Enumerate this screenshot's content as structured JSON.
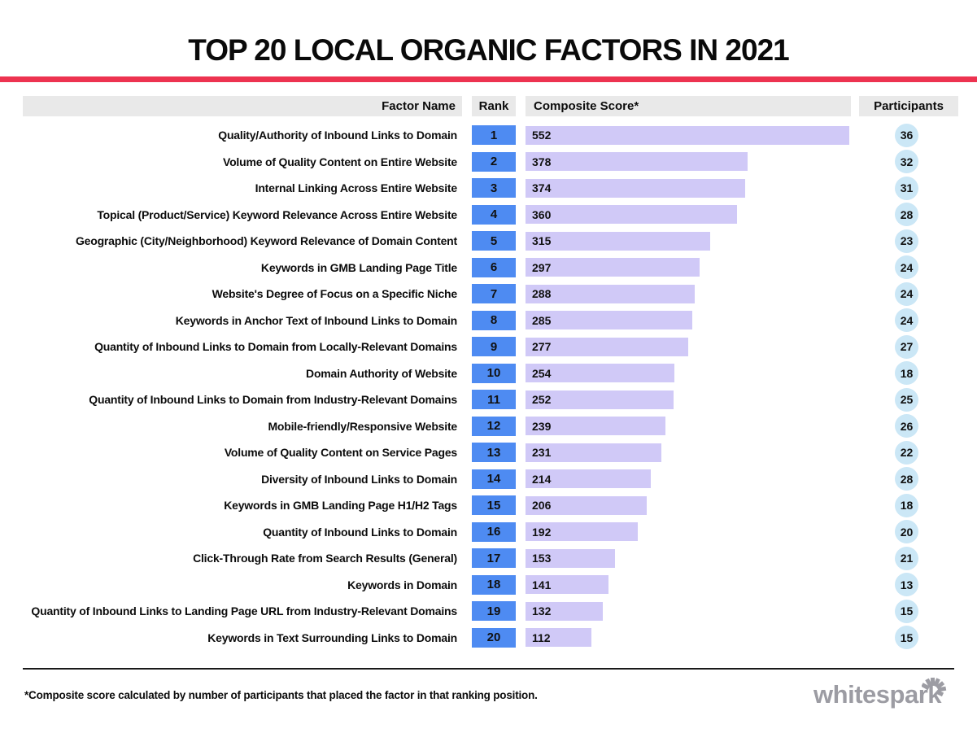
{
  "title": "TOP 20 LOCAL ORGANIC FACTORS IN 2021",
  "colors": {
    "accent_red": "#ED3350",
    "rank_blue": "#4E8BF2",
    "bar_lavender": "#D0C9F7",
    "participant_blue": "#CBE7F6",
    "header_gray": "#E9E9E9",
    "logo_gray": "#9C9CA3"
  },
  "table": {
    "headers": {
      "factor": "Factor Name",
      "rank": "Rank",
      "score": "Composite Score*",
      "participants": "Participants"
    }
  },
  "footnote": "*Composite score calculated by number of participants that placed the factor in that ranking position.",
  "logo": {
    "text": "whitespark",
    "icon": "spark-burst-icon"
  },
  "chart_data": {
    "type": "bar",
    "orientation": "horizontal",
    "title": "TOP 20 LOCAL ORGANIC FACTORS IN 2021",
    "categories": [
      "Quality/Authority of Inbound Links to Domain",
      "Volume of Quality Content on Entire Website",
      "Internal Linking Across Entire Website",
      "Topical (Product/Service) Keyword Relevance Across Entire Website",
      "Geographic (City/Neighborhood) Keyword Relevance of Domain Content",
      "Keywords in GMB Landing Page Title",
      "Website's Degree of Focus on a Specific Niche",
      "Keywords in Anchor Text of Inbound Links to Domain",
      "Quantity of Inbound Links to Domain from Locally-Relevant Domains",
      "Domain Authority of Website",
      "Quantity of Inbound Links to Domain from Industry-Relevant Domains",
      "Mobile-friendly/Responsive Website",
      "Volume of Quality Content on Service Pages",
      "Diversity of Inbound Links to Domain",
      "Keywords in GMB Landing Page H1/H2 Tags",
      "Quantity of Inbound Links to Domain",
      "Click-Through Rate from Search Results (General)",
      "Keywords in Domain",
      "Quantity of Inbound Links to Landing Page URL from Industry-Relevant Domains",
      "Keywords in Text Surrounding Links to Domain"
    ],
    "series": [
      {
        "name": "Rank",
        "values": [
          1,
          2,
          3,
          4,
          5,
          6,
          7,
          8,
          9,
          10,
          11,
          12,
          13,
          14,
          15,
          16,
          17,
          18,
          19,
          20
        ]
      },
      {
        "name": "Composite Score",
        "values": [
          552,
          378,
          374,
          360,
          315,
          297,
          288,
          285,
          277,
          254,
          252,
          239,
          231,
          214,
          206,
          192,
          153,
          141,
          132,
          112
        ]
      },
      {
        "name": "Participants",
        "values": [
          36,
          32,
          31,
          28,
          23,
          24,
          24,
          24,
          27,
          18,
          25,
          26,
          22,
          28,
          18,
          20,
          21,
          13,
          15,
          15
        ]
      }
    ],
    "xlim": [
      0,
      552
    ],
    "value_label_position": "inside-left",
    "grid": false,
    "legend": false
  }
}
